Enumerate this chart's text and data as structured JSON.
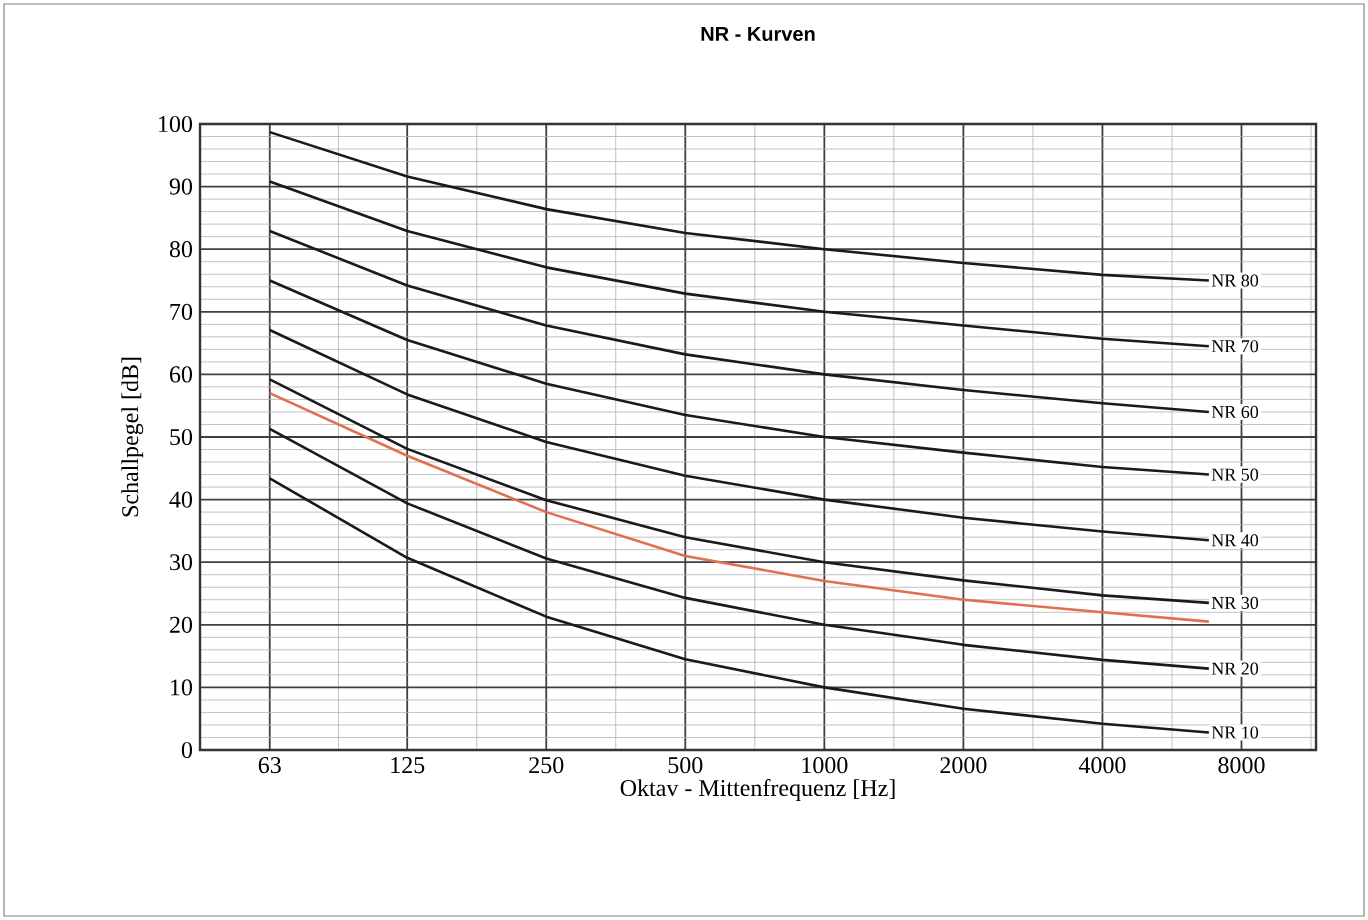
{
  "chart_data": {
    "type": "line",
    "title": "NR - Kurven",
    "xlabel": "Oktav - Mittenfrequenz [Hz]",
    "ylabel": "Schallpegel [dB]",
    "x": [
      63,
      125,
      250,
      500,
      1000,
      2000,
      4000,
      6800
    ],
    "series": [
      {
        "name": "NR 80",
        "color": "#1a1a1a",
        "values": [
          98.7,
          91.6,
          86.4,
          82.6,
          80,
          77.8,
          75.9,
          75
        ]
      },
      {
        "name": "NR 70",
        "color": "#1a1a1a",
        "values": [
          90.8,
          82.9,
          77.1,
          72.9,
          70,
          67.8,
          65.7,
          64.5
        ]
      },
      {
        "name": "NR 60",
        "color": "#1a1a1a",
        "values": [
          82.9,
          74.2,
          67.8,
          63.2,
          60,
          57.5,
          55.4,
          54
        ]
      },
      {
        "name": "NR 50",
        "color": "#1a1a1a",
        "values": [
          75,
          65.5,
          58.5,
          53.5,
          50,
          47.5,
          45.2,
          44
        ]
      },
      {
        "name": "NR 40",
        "color": "#1a1a1a",
        "values": [
          67.1,
          56.8,
          49.2,
          43.8,
          40,
          37.1,
          34.9,
          33.5
        ]
      },
      {
        "name": "NR 30",
        "color": "#1a1a1a",
        "values": [
          59.2,
          48.1,
          39.9,
          34,
          30,
          27.1,
          24.7,
          23.5
        ]
      },
      {
        "name": "NR 20",
        "color": "#1a1a1a",
        "values": [
          51.3,
          39.4,
          30.6,
          24.3,
          20,
          16.8,
          14.4,
          13
        ]
      },
      {
        "name": "NR 10",
        "color": "#1a1a1a",
        "values": [
          43.4,
          30.7,
          21.3,
          14.5,
          10,
          6.6,
          4.2,
          2.8
        ]
      },
      {
        "color": "#e07050",
        "values": [
          57,
          47,
          38,
          31,
          27,
          24,
          22,
          20.5
        ]
      }
    ],
    "log": "x",
    "xlim": [
      44.5,
      11600
    ],
    "xticks": [
      63,
      125,
      250,
      500,
      1000,
      2000,
      4000,
      8000
    ],
    "ylim": [
      0,
      100
    ],
    "yticks": [
      0,
      10,
      20,
      30,
      40,
      50,
      60,
      70,
      80,
      90,
      100
    ],
    "grid": true,
    "legend": false,
    "marker": "none",
    "line_style": "solid"
  }
}
